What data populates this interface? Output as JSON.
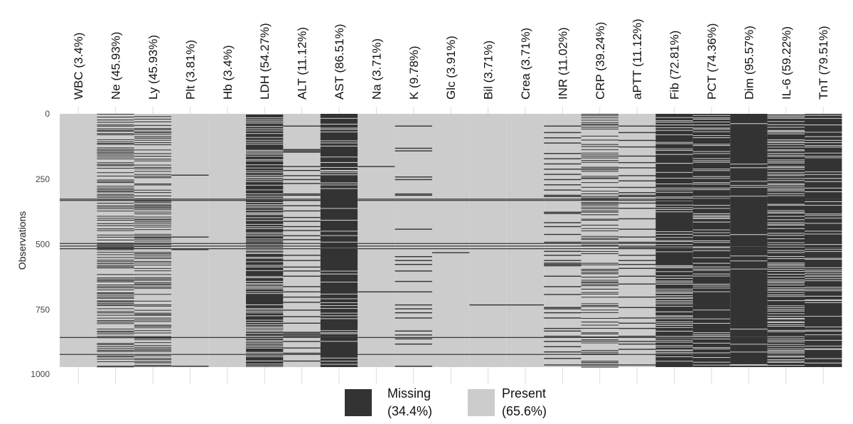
{
  "chart_data": {
    "type": "heatmap",
    "ylabel": "Observations",
    "n_observations": 970,
    "y_ticks": [
      0,
      250,
      500,
      750,
      1000
    ],
    "ylim": [
      0,
      1000
    ],
    "colors": {
      "missing": "#333333",
      "present": "#cccccc",
      "gridline": "#dddddd"
    },
    "legend": {
      "placement": "bottom",
      "items": [
        {
          "key": "missing",
          "label": "Missing",
          "pct": "(34.4%)"
        },
        {
          "key": "present",
          "label": "Present",
          "pct": "(65.6%)"
        }
      ]
    },
    "series": [
      {
        "label": "WBC (3.4%)",
        "missing_pct": 3.4
      },
      {
        "label": "Ne (45.93%)",
        "missing_pct": 45.93
      },
      {
        "label": "Ly (45.93%)",
        "missing_pct": 45.93
      },
      {
        "label": "Plt (3.81%)",
        "missing_pct": 3.81
      },
      {
        "label": "Hb (3.4%)",
        "missing_pct": 3.4
      },
      {
        "label": "LDH (54.27%)",
        "missing_pct": 54.27
      },
      {
        "label": "ALT (11.12%)",
        "missing_pct": 11.12
      },
      {
        "label": "AST (86.51%)",
        "missing_pct": 86.51
      },
      {
        "label": "Na (3.71%)",
        "missing_pct": 3.71
      },
      {
        "label": "K (9.78%)",
        "missing_pct": 9.78
      },
      {
        "label": "Glc (3.91%)",
        "missing_pct": 3.91
      },
      {
        "label": "Bil (3.71%)",
        "missing_pct": 3.71
      },
      {
        "label": "Crea (3.71%)",
        "missing_pct": 3.71
      },
      {
        "label": "INR (11.02%)",
        "missing_pct": 11.02
      },
      {
        "label": "CRP (39.24%)",
        "missing_pct": 39.24
      },
      {
        "label": "aPTT (11.12%)",
        "missing_pct": 11.12
      },
      {
        "label": "Fib (72.81%)",
        "missing_pct": 72.81
      },
      {
        "label": "PCT (74.36%)",
        "missing_pct": 74.36
      },
      {
        "label": "Dim (95.57%)",
        "missing_pct": 95.57
      },
      {
        "label": "IL-6 (59.22%)",
        "missing_pct": 59.22
      },
      {
        "label": "TnT (79.51%)",
        "missing_pct": 79.51
      }
    ],
    "missing_rows_across_all": [
      325,
      330,
      495,
      505,
      515,
      855,
      920
    ],
    "specific_missing": {
      "Plt (3.81%)": [
        233,
        470,
        518,
        965
      ],
      "Na (3.71%)": [
        200,
        680
      ],
      "K (9.78%)": [
        45,
        130,
        140,
        240,
        250,
        305,
        310,
        440,
        545,
        560,
        575,
        600,
        640,
        680,
        730,
        745,
        760,
        780,
        830,
        845,
        860,
        880,
        965
      ],
      "Glc (3.91%)": [
        530
      ],
      "Bil (3.71%)": [
        730
      ],
      "Crea (3.71%)": [
        730
      ],
      "ALT (11.12%)": [
        45,
        135,
        140,
        145,
        200,
        215,
        235,
        250,
        265,
        305,
        310,
        330,
        350,
        370,
        395,
        410,
        430,
        445,
        465,
        480,
        540,
        560,
        585,
        600,
        620,
        660,
        680,
        700,
        720,
        750,
        775,
        800,
        835,
        840,
        845,
        850,
        870,
        895,
        915,
        945
      ],
      "INR (11.02%)": [
        45,
        70,
        90,
        110,
        150,
        170,
        190,
        210,
        230,
        250,
        270,
        290,
        310,
        315,
        375,
        380,
        415,
        430,
        460,
        490,
        525,
        540,
        560,
        570,
        575,
        580,
        620,
        660,
        690,
        740,
        745,
        760,
        780,
        820,
        830,
        850,
        870,
        890,
        910,
        935,
        960
      ],
      "aPTT (11.12%)": [
        45,
        70,
        100,
        125,
        160,
        185,
        205,
        235,
        255,
        280,
        300,
        310,
        315,
        340,
        360,
        400,
        440,
        470,
        490,
        510,
        540,
        560,
        575,
        590,
        620,
        650,
        700,
        740,
        780,
        800,
        820,
        850,
        870,
        880,
        900,
        960
      ]
    }
  }
}
